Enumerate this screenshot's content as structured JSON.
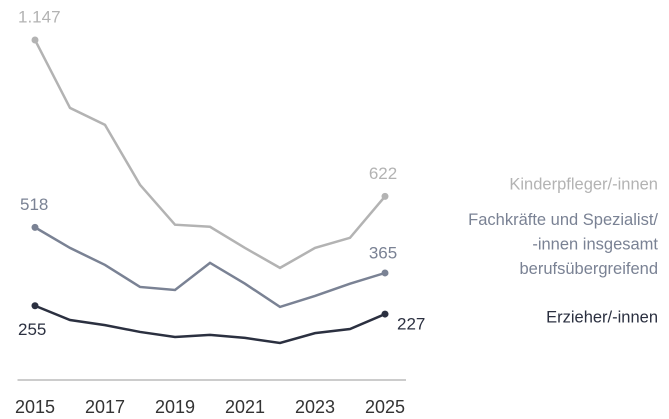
{
  "chart_data": {
    "type": "line",
    "x": [
      2015,
      2016,
      2017,
      2018,
      2019,
      2020,
      2021,
      2022,
      2023,
      2024,
      2025
    ],
    "xlim": [
      2014.5,
      2025.6
    ],
    "xticks": [
      2015,
      2017,
      2019,
      2021,
      2023,
      2025
    ],
    "ylim": [
      0,
      1200
    ],
    "series": [
      {
        "name": "Kinderpfleger/-innen",
        "color": "#b3b3b3",
        "values": [
          1147,
          919,
          862,
          661,
          527,
          520,
          449,
          382,
          449,
          483,
          622
        ],
        "value_labels": [
          "1.147",
          null,
          null,
          null,
          null,
          null,
          null,
          null,
          null,
          null,
          "622"
        ]
      },
      {
        "name": "Fachkräfte und Spezialist/\n-innen insgesamt\nberufsübergreifend",
        "color": "#7a8294",
        "values": [
          518,
          449,
          392,
          318,
          308,
          399,
          329,
          251,
          288,
          329,
          365
        ],
        "value_labels": [
          "518",
          null,
          null,
          null,
          null,
          null,
          null,
          null,
          null,
          null,
          "365"
        ]
      },
      {
        "name": "Erzieher/-innen",
        "color": "#2b3040",
        "values": [
          255,
          207,
          190,
          167,
          150,
          157,
          147,
          130,
          163,
          177,
          227
        ],
        "value_labels": [
          "255",
          null,
          null,
          null,
          null,
          null,
          null,
          null,
          null,
          null,
          "227"
        ]
      }
    ]
  }
}
